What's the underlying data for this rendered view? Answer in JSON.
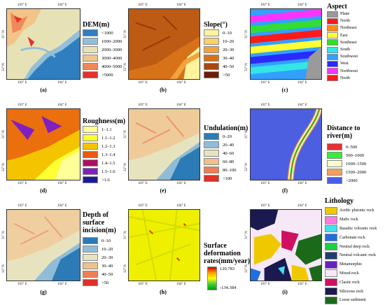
{
  "ticks": {
    "lon1": "103° E",
    "lon2": "104° E",
    "lat1": "32° N",
    "lat2": "31° N"
  },
  "panels": [
    {
      "id": "a",
      "caption": "(a)",
      "legend_title": "DEM(m)",
      "items": [
        {
          "label": "<1000",
          "color": "#2f7ec0"
        },
        {
          "label": "1000–2000",
          "color": "#93c0d8"
        },
        {
          "label": "2000–3000",
          "color": "#e7e2b6"
        },
        {
          "label": "3000–4000",
          "color": "#f2c487"
        },
        {
          "label": "4000–5000",
          "color": "#ee8a58"
        },
        {
          "label": ">5000",
          "color": "#e8302a"
        }
      ]
    },
    {
      "id": "b",
      "caption": "(b)",
      "legend_title": "Slope(°)",
      "items": [
        {
          "label": "0–10",
          "color": "#fff3a0"
        },
        {
          "label": "10–20",
          "color": "#fbd16a"
        },
        {
          "label": "20–30",
          "color": "#f3a33c"
        },
        {
          "label": "30–40",
          "color": "#d87219"
        },
        {
          "label": "40–50",
          "color": "#a8470f"
        },
        {
          "label": ">50",
          "color": "#6e1c06"
        }
      ]
    },
    {
      "id": "c",
      "caption": "(c)",
      "legend_title": "Aspect",
      "items": [
        {
          "label": "Plane",
          "color": "#9a9a9a"
        },
        {
          "label": "North",
          "color": "#ff1a1a"
        },
        {
          "label": "Northeast",
          "color": "#ff8c1a"
        },
        {
          "label": "East",
          "color": "#ffff33"
        },
        {
          "label": "Southeast",
          "color": "#33dd33"
        },
        {
          "label": "South",
          "color": "#33e5e5"
        },
        {
          "label": "Southwest",
          "color": "#33a0ff"
        },
        {
          "label": "West",
          "color": "#2a2aff"
        },
        {
          "label": "Northwest",
          "color": "#ff33ff"
        },
        {
          "label": "North",
          "color": "#ff1a1a"
        }
      ]
    },
    {
      "id": "d",
      "caption": "(d)",
      "legend_title": "Roughness(m)",
      "items": [
        {
          "label": "1–1.1",
          "color": "#ffff99"
        },
        {
          "label": "1.1–1.2",
          "color": "#ffff33"
        },
        {
          "label": "1.2–1.3",
          "color": "#f5c400"
        },
        {
          "label": "1.3–1.4",
          "color": "#e85a10"
        },
        {
          "label": "1.4–1.5",
          "color": "#b01060"
        },
        {
          "label": "1.5–1.6",
          "color": "#8020c0"
        },
        {
          "label": ">1.6",
          "color": "#1a1aa0"
        }
      ]
    },
    {
      "id": "e",
      "caption": "(e)",
      "legend_title": "Undulation(m)",
      "items": [
        {
          "label": "0–20",
          "color": "#2c7bb6"
        },
        {
          "label": "20–40",
          "color": "#90bcd8"
        },
        {
          "label": "40–60",
          "color": "#e8e3bf"
        },
        {
          "label": "60–80",
          "color": "#f3c08a"
        },
        {
          "label": "80–100",
          "color": "#ee7e54"
        },
        {
          "label": ">100",
          "color": "#e03028"
        }
      ]
    },
    {
      "id": "f",
      "caption": "(f)",
      "legend_title": "Distance to river(m)",
      "items": [
        {
          "label": "0–500",
          "color": "#e83030"
        },
        {
          "label": "500–1000",
          "color": "#33ee33"
        },
        {
          "label": "1000–1500",
          "color": "#ffffcc"
        },
        {
          "label": "1500–2000",
          "color": "#f0a060"
        },
        {
          "label": ">2000",
          "color": "#4b5fe0"
        }
      ]
    },
    {
      "id": "g",
      "caption": "(g)",
      "legend_title": "Depth of surface incision(m)",
      "items": [
        {
          "label": "0–10",
          "color": "#2c7bb6"
        },
        {
          "label": "10–20",
          "color": "#90bcd8"
        },
        {
          "label": "20–30",
          "color": "#e8e3bf"
        },
        {
          "label": "30–40",
          "color": "#f3c08a"
        },
        {
          "label": "40–50",
          "color": "#ee7e54"
        },
        {
          "label": ">50",
          "color": "#e03028"
        }
      ]
    },
    {
      "id": "h",
      "caption": "(h)",
      "legend_title": "Surface deformation rates(mm/year)",
      "max": "120.783",
      "min": "-134.384"
    },
    {
      "id": "i",
      "caption": "(i)",
      "legend_title": "Lithology",
      "items": [
        {
          "label": "Acidic plutonic rock",
          "color": "#f0c800"
        },
        {
          "label": "Mafic rock",
          "color": "#ff7ae0"
        },
        {
          "label": "Basaltic volcanic rock",
          "color": "#40e0f0"
        },
        {
          "label": "Carbonate rock",
          "color": "#1f6fe0"
        },
        {
          "label": "Neutral deep rock",
          "color": "#1ad040"
        },
        {
          "label": "Neutral volcanic rock",
          "color": "#1f3f70"
        },
        {
          "label": "Metamorphic",
          "color": "#6a1fc0"
        },
        {
          "label": "Mixed rock",
          "color": "#f7e8f7"
        },
        {
          "label": "Clastic rock",
          "color": "#d01060"
        },
        {
          "label": "Siliceous rock",
          "color": "#1a1a50"
        },
        {
          "label": "Loose sediment",
          "color": "#1a6a1a"
        }
      ]
    }
  ]
}
